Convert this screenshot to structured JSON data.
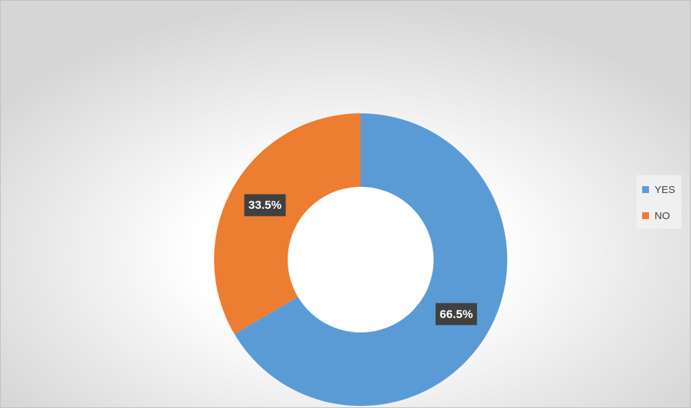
{
  "chart_data": {
    "type": "donut",
    "categories": [
      "YES",
      "NO"
    ],
    "values": [
      66.5,
      33.5
    ],
    "value_labels": [
      "66.5%",
      "33.5%"
    ],
    "colors": [
      "#5b9bd5",
      "#ed7d31"
    ],
    "legend": "right"
  }
}
